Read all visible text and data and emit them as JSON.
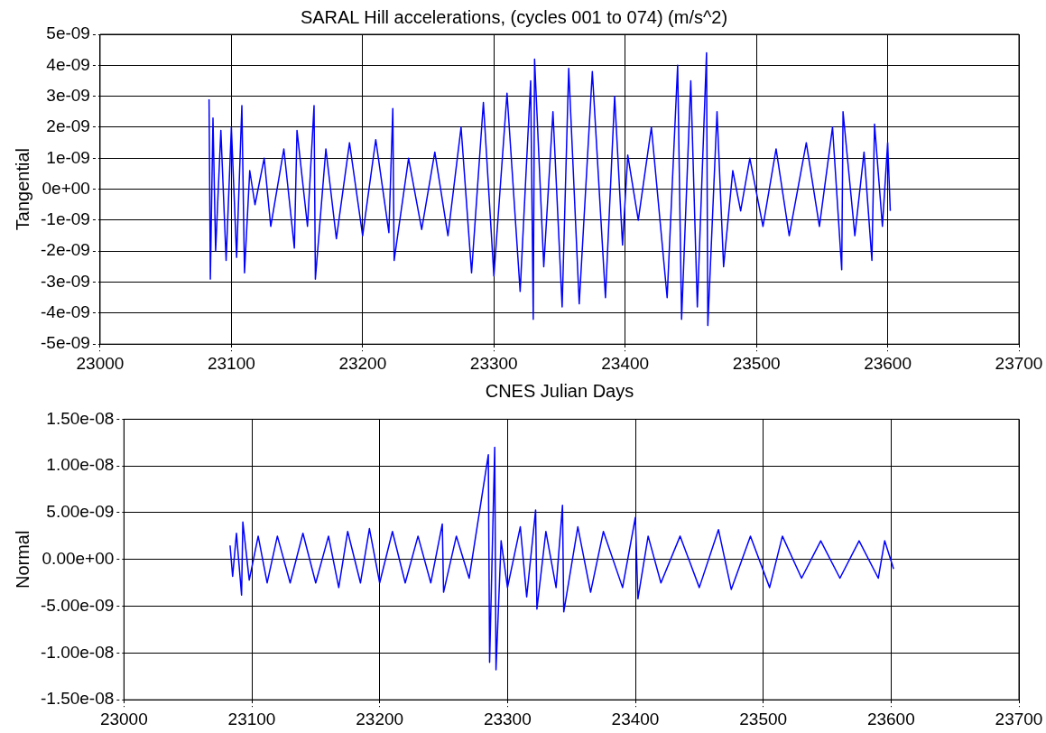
{
  "chart_data": [
    {
      "type": "line",
      "title": "SARAL Hill accelerations, (cycles 001 to 074) (m/s^2)",
      "xlabel": "CNES Julian Days",
      "ylabel": "Tangential",
      "grid": true,
      "marker": "none",
      "xlim": [
        23000,
        23700
      ],
      "xticks": [
        23000,
        23100,
        23200,
        23300,
        23400,
        23500,
        23600,
        23700
      ],
      "ylim": [
        -5e-09,
        5e-09
      ],
      "yticks": [
        {
          "value": -5e-09,
          "label": "-5e-09"
        },
        {
          "value": -4e-09,
          "label": "-4e-09"
        },
        {
          "value": -3e-09,
          "label": "-3e-09"
        },
        {
          "value": -2e-09,
          "label": "-2e-09"
        },
        {
          "value": -1e-09,
          "label": "-1e-09"
        },
        {
          "value": 0,
          "label": "0e+00"
        },
        {
          "value": 1e-09,
          "label": "1e-09"
        },
        {
          "value": 2e-09,
          "label": "2e-09"
        },
        {
          "value": 3e-09,
          "label": "3e-09"
        },
        {
          "value": 4e-09,
          "label": "4e-09"
        },
        {
          "value": 5e-09,
          "label": "5e-09"
        }
      ],
      "x": [
        23083,
        23084,
        23086,
        23088,
        23092,
        23096,
        23100,
        23104,
        23108,
        23110,
        23114,
        23118,
        23125,
        23130,
        23140,
        23148,
        23150,
        23158,
        23163,
        23164,
        23172,
        23180,
        23190,
        23200,
        23210,
        23220,
        23223,
        23224,
        23235,
        23245,
        23255,
        23265,
        23275,
        23283,
        23292,
        23300,
        23310,
        23320,
        23328,
        23330,
        23331,
        23338,
        23345,
        23352,
        23357,
        23365,
        23375,
        23385,
        23392,
        23398,
        23402,
        23410,
        23420,
        23432,
        23440,
        23443,
        23450,
        23455,
        23462,
        23463,
        23470,
        23475,
        23482,
        23488,
        23495,
        23505,
        23515,
        23525,
        23538,
        23548,
        23558,
        23565,
        23566,
        23575,
        23582,
        23588,
        23590,
        23596,
        23600,
        23602
      ],
      "series": [
        {
          "color": "#0000ff",
          "values": [
            2.9e-09,
            -2.9e-09,
            2.3e-09,
            -2e-09,
            1.9e-09,
            -2.3e-09,
            2e-09,
            -2.2e-09,
            2.7e-09,
            -2.7e-09,
            6e-10,
            -5e-10,
            1e-09,
            -1.2e-09,
            1.3e-09,
            -1.9e-09,
            1.9e-09,
            -1.2e-09,
            2.7e-09,
            -2.9e-09,
            1.3e-09,
            -1.6e-09,
            1.5e-09,
            -1.5e-09,
            1.6e-09,
            -1.4e-09,
            2.6e-09,
            -2.3e-09,
            1e-09,
            -1.3e-09,
            1.2e-09,
            -1.5e-09,
            2e-09,
            -2.7e-09,
            2.8e-09,
            -2.8e-09,
            3.1e-09,
            -3.3e-09,
            3.5e-09,
            -4.2e-09,
            4.2e-09,
            -2.5e-09,
            2.5e-09,
            -3.8e-09,
            3.9e-09,
            -3.7e-09,
            3.8e-09,
            -3.5e-09,
            3e-09,
            -1.8e-09,
            1.1e-09,
            -1e-09,
            2e-09,
            -3.5e-09,
            4e-09,
            -4.2e-09,
            3.5e-09,
            -3.8e-09,
            4.4e-09,
            -4.4e-09,
            2.5e-09,
            -2.5e-09,
            6e-10,
            -7e-10,
            1e-09,
            -1.2e-09,
            1.3e-09,
            -1.5e-09,
            1.5e-09,
            -1.2e-09,
            2e-09,
            -2.6e-09,
            2.5e-09,
            -1.5e-09,
            1.2e-09,
            -2.3e-09,
            2.1e-09,
            -1.2e-09,
            1.5e-09,
            -7e-10
          ]
        }
      ]
    },
    {
      "type": "line",
      "ylabel": "Normal",
      "grid": true,
      "marker": "none",
      "xlim": [
        23000,
        23700
      ],
      "xticks": [
        23000,
        23100,
        23200,
        23300,
        23400,
        23500,
        23600,
        23700
      ],
      "ylim": [
        -1.5e-08,
        1.5e-08
      ],
      "yticks": [
        {
          "value": -1.5e-08,
          "label": "-1.50e-08"
        },
        {
          "value": -1e-08,
          "label": "-1.00e-08"
        },
        {
          "value": -5e-09,
          "label": "-5.00e-09"
        },
        {
          "value": 0,
          "label": "0.00e+00"
        },
        {
          "value": 5e-09,
          "label": "5.00e-09"
        },
        {
          "value": 1e-08,
          "label": "1.00e-08"
        },
        {
          "value": 1.5e-08,
          "label": "1.50e-08"
        }
      ],
      "x": [
        23083,
        23085,
        23088,
        23092,
        23093,
        23098,
        23105,
        23112,
        23120,
        23130,
        23140,
        23150,
        23160,
        23168,
        23175,
        23185,
        23192,
        23200,
        23210,
        23220,
        23230,
        23240,
        23249,
        23250,
        23260,
        23270,
        23285,
        23286,
        23290,
        23291,
        23295,
        23300,
        23310,
        23315,
        23322,
        23323,
        23330,
        23338,
        23343,
        23344,
        23355,
        23365,
        23375,
        23390,
        23400,
        23402,
        23410,
        23420,
        23435,
        23450,
        23465,
        23475,
        23490,
        23505,
        23515,
        23530,
        23545,
        23560,
        23575,
        23590,
        23595,
        23602
      ],
      "series": [
        {
          "color": "#0000ff",
          "values": [
            1.5e-09,
            -1.8e-09,
            2.8e-09,
            -3.8e-09,
            4e-09,
            -2.2e-09,
            2.5e-09,
            -2.5e-09,
            2.5e-09,
            -2.5e-09,
            2.8e-09,
            -2.5e-09,
            2.5e-09,
            -3e-09,
            3e-09,
            -2.5e-09,
            3.3e-09,
            -2.5e-09,
            3e-09,
            -2.5e-09,
            2.5e-09,
            -2.5e-09,
            3.8e-09,
            -3.5e-09,
            2.5e-09,
            -2e-09,
            1.12e-08,
            -1.1e-08,
            1.2e-08,
            -1.18e-08,
            2e-09,
            -3e-09,
            3.5e-09,
            -4e-09,
            5.3e-09,
            -5.3e-09,
            3e-09,
            -3e-09,
            5.8e-09,
            -5.6e-09,
            3.5e-09,
            -3.5e-09,
            3e-09,
            -3e-09,
            4.5e-09,
            -4.2e-09,
            2.5e-09,
            -2.5e-09,
            2.5e-09,
            -3e-09,
            3.2e-09,
            -3.2e-09,
            2.5e-09,
            -3e-09,
            2.5e-09,
            -2e-09,
            2e-09,
            -2e-09,
            2e-09,
            -2e-09,
            2e-09,
            -1e-09
          ]
        }
      ]
    }
  ]
}
